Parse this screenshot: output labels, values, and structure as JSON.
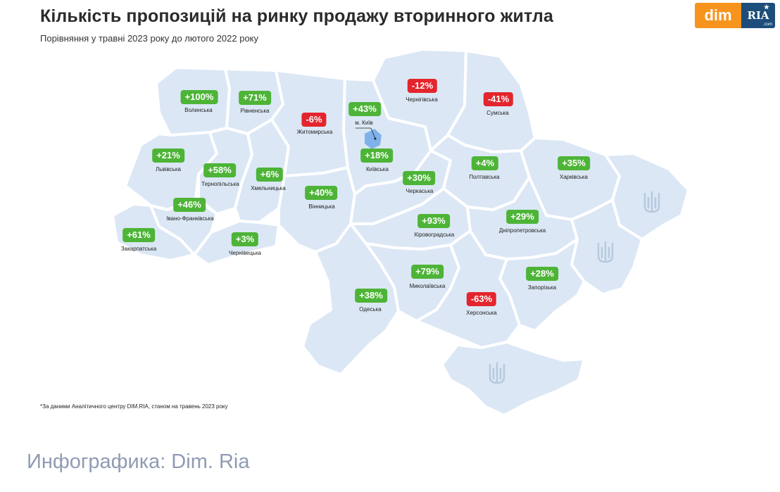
{
  "header": {
    "title": "Кількість пропозицій на ринку продажу вторинного житла",
    "subtitle": "Порівняння у травні 2023 року до лютого 2022 року"
  },
  "logo": {
    "dim": "dim",
    "ria": "RIA",
    "com": ".com"
  },
  "regions": [
    {
      "name": "Волинська",
      "value": "+100%",
      "sign": "positive"
    },
    {
      "name": "Рівненська",
      "value": "+71%",
      "sign": "positive"
    },
    {
      "name": "Житомирська",
      "value": "-6%",
      "sign": "negative"
    },
    {
      "name": "Чернігівська",
      "value": "-12%",
      "sign": "negative"
    },
    {
      "name": "Сумська",
      "value": "-41%",
      "sign": "negative"
    },
    {
      "name": "м. Київ",
      "value": "+43%",
      "sign": "positive"
    },
    {
      "name": "Київська",
      "value": "+18%",
      "sign": "positive"
    },
    {
      "name": "Львівська",
      "value": "+21%",
      "sign": "positive"
    },
    {
      "name": "Тернопільська",
      "value": "+58%",
      "sign": "positive"
    },
    {
      "name": "Хмельницька",
      "value": "+6%",
      "sign": "positive"
    },
    {
      "name": "Вінницька",
      "value": "+40%",
      "sign": "positive"
    },
    {
      "name": "Черкаська",
      "value": "+30%",
      "sign": "positive"
    },
    {
      "name": "Полтавська",
      "value": "+4%",
      "sign": "positive"
    },
    {
      "name": "Харківська",
      "value": "+35%",
      "sign": "positive"
    },
    {
      "name": "Івано-Франківська",
      "value": "+46%",
      "sign": "positive"
    },
    {
      "name": "Закарпатська",
      "value": "+61%",
      "sign": "positive"
    },
    {
      "name": "Чернівецька",
      "value": "+3%",
      "sign": "positive"
    },
    {
      "name": "Кіровоградська",
      "value": "+93%",
      "sign": "positive"
    },
    {
      "name": "Дніпропетровська",
      "value": "+29%",
      "sign": "positive"
    },
    {
      "name": "Миколаївська",
      "value": "+79%",
      "sign": "positive"
    },
    {
      "name": "Запорізька",
      "value": "+28%",
      "sign": "positive"
    },
    {
      "name": "Одеська",
      "value": "+38%",
      "sign": "positive"
    },
    {
      "name": "Херсонська",
      "value": "-63%",
      "sign": "negative"
    }
  ],
  "colors": {
    "positive": "#4db437",
    "negative": "#e4252d",
    "map_fill": "#dbe7f5",
    "kyiv_city": "#7fb2ea"
  },
  "footnote": "*За даними Аналітичного центру DIM.RIA, станом на травень 2023 року",
  "credit": "Инфографика: Dim. Ria"
}
